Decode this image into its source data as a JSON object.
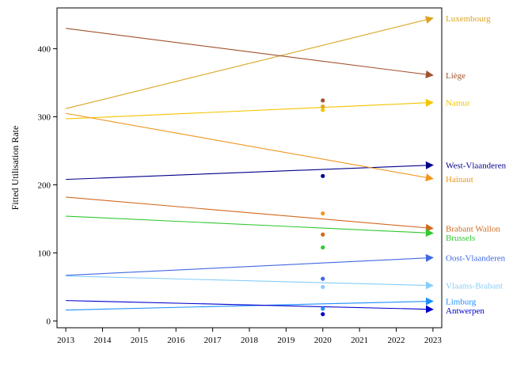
{
  "chart_data": {
    "type": "line",
    "title": "",
    "xlabel": "",
    "ylabel": "Fitted Utilisation Rate",
    "xlim": [
      2013,
      2023
    ],
    "ylim": [
      0,
      460
    ],
    "x_ticks": [
      2013,
      2014,
      2015,
      2016,
      2017,
      2018,
      2019,
      2020,
      2021,
      2022,
      2023
    ],
    "y_ticks": [
      0,
      100,
      200,
      300,
      400
    ],
    "grid": false,
    "legend": "direct labels at right end of lines",
    "observed_x": 2020,
    "series": [
      {
        "name": "Luxembourg",
        "color": "#daa520",
        "x": [
          2013,
          2023
        ],
        "y": [
          312,
          445
        ],
        "observed": 315
      },
      {
        "name": "Liège",
        "color": "#a0522d",
        "x": [
          2013,
          2023
        ],
        "y": [
          430,
          361
        ],
        "observed": 324
      },
      {
        "name": "Namur",
        "color": "#f5c400",
        "x": [
          2013,
          2023
        ],
        "y": [
          297,
          321
        ],
        "observed": 310
      },
      {
        "name": "West-Vlaanderen",
        "color": "#00008b",
        "x": [
          2013,
          2023
        ],
        "y": [
          208,
          229
        ],
        "observed": 213
      },
      {
        "name": "Hainaut",
        "color": "#f0961e",
        "x": [
          2013,
          2023
        ],
        "y": [
          305,
          209
        ],
        "observed": 158
      },
      {
        "name": "Brabant Wallon",
        "color": "#d2691e",
        "x": [
          2013,
          2023
        ],
        "y": [
          182,
          136
        ],
        "observed": 127
      },
      {
        "name": "Brussels",
        "color": "#32c832",
        "x": [
          2013,
          2023
        ],
        "y": [
          154,
          129
        ],
        "observed": 108
      },
      {
        "name": "Oost-Vlaanderen",
        "color": "#4169e1",
        "x": [
          2013,
          2023
        ],
        "y": [
          67,
          93
        ],
        "observed": 62
      },
      {
        "name": "Vlaams-Brabant",
        "color": "#87cefa",
        "x": [
          2013,
          2023
        ],
        "y": [
          66,
          52
        ],
        "observed": 50
      },
      {
        "name": "Limburg",
        "color": "#1e90ff",
        "x": [
          2013,
          2023
        ],
        "y": [
          16,
          29
        ],
        "observed": 18
      },
      {
        "name": "Antwerpen",
        "color": "#0000cd",
        "x": [
          2013,
          2023
        ],
        "y": [
          30,
          17
        ],
        "observed": 10
      }
    ]
  }
}
